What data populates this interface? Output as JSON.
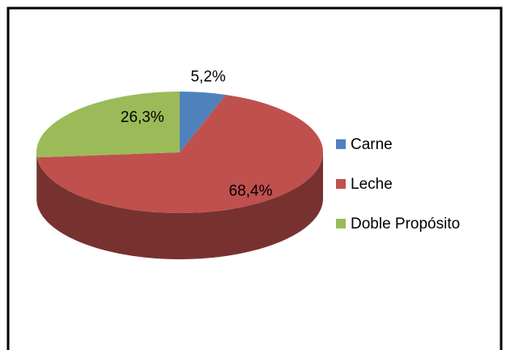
{
  "chart_data": {
    "type": "pie",
    "categories": [
      "Carne",
      "Leche",
      "Doble Propósito"
    ],
    "values": [
      5.2,
      68.4,
      26.3
    ],
    "value_labels": [
      "5,2%",
      "68,4%",
      "26,3%"
    ],
    "colors": [
      "#4f81bd",
      "#c0504d",
      "#9bbb59"
    ],
    "legend": "right"
  }
}
